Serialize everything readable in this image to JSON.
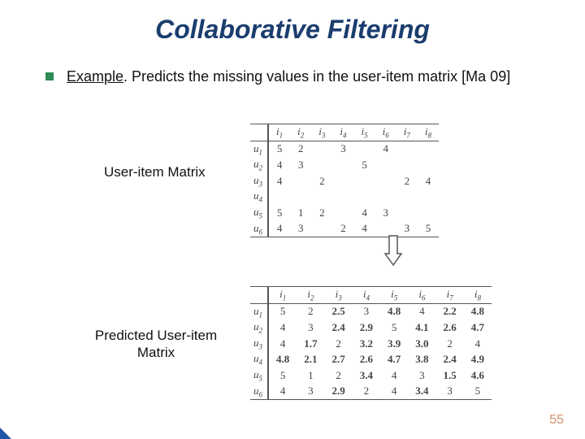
{
  "title": "Collaborative Filtering",
  "bullet": {
    "example_word": "Example",
    "rest": ". Predicts the missing values in the user-item matrix [Ma 09]"
  },
  "label_user_item": "User-item Matrix",
  "label_predicted": "Predicted User-item Matrix",
  "page_number": "55",
  "matrix1": {
    "col_labels": [
      "i",
      "i",
      "i",
      "i",
      "i",
      "i",
      "i",
      "i"
    ],
    "col_subs": [
      "1",
      "2",
      "3",
      "4",
      "5",
      "6",
      "7",
      "8"
    ],
    "row_labels": [
      "u",
      "u",
      "u",
      "u",
      "u",
      "u"
    ],
    "row_subs": [
      "1",
      "2",
      "3",
      "4",
      "5",
      "6"
    ],
    "cells": [
      [
        "5",
        "2",
        "",
        "3",
        "",
        "4",
        "",
        ""
      ],
      [
        "4",
        "3",
        "",
        "",
        "5",
        "",
        "",
        ""
      ],
      [
        "4",
        "",
        "2",
        "",
        "",
        "",
        "2",
        "4"
      ],
      [
        "",
        "",
        "",
        "",
        "",
        "",
        "",
        ""
      ],
      [
        "5",
        "1",
        "2",
        "",
        "4",
        "3",
        "",
        ""
      ],
      [
        "4",
        "3",
        "",
        "2",
        "4",
        "",
        "3",
        "5"
      ]
    ],
    "bold": [
      [
        false,
        false,
        false,
        false,
        false,
        false,
        false,
        false
      ],
      [
        false,
        false,
        false,
        false,
        false,
        false,
        false,
        false
      ],
      [
        false,
        false,
        false,
        false,
        false,
        false,
        false,
        false
      ],
      [
        false,
        false,
        false,
        false,
        false,
        false,
        false,
        false
      ],
      [
        false,
        false,
        false,
        false,
        false,
        false,
        false,
        false
      ],
      [
        false,
        false,
        false,
        false,
        false,
        false,
        false,
        false
      ]
    ]
  },
  "matrix2": {
    "col_labels": [
      "i",
      "i",
      "i",
      "i",
      "i",
      "i",
      "i",
      "i"
    ],
    "col_subs": [
      "1",
      "2",
      "3",
      "4",
      "5",
      "6",
      "7",
      "8"
    ],
    "row_labels": [
      "u",
      "u",
      "u",
      "u",
      "u",
      "u"
    ],
    "row_subs": [
      "1",
      "2",
      "3",
      "4",
      "5",
      "6"
    ],
    "cells": [
      [
        "5",
        "2",
        "2.5",
        "3",
        "4.8",
        "4",
        "2.2",
        "4.8"
      ],
      [
        "4",
        "3",
        "2.4",
        "2.9",
        "5",
        "4.1",
        "2.6",
        "4.7"
      ],
      [
        "4",
        "1.7",
        "2",
        "3.2",
        "3.9",
        "3.0",
        "2",
        "4"
      ],
      [
        "4.8",
        "2.1",
        "2.7",
        "2.6",
        "4.7",
        "3.8",
        "2.4",
        "4.9"
      ],
      [
        "5",
        "1",
        "2",
        "3.4",
        "4",
        "3",
        "1.5",
        "4.6"
      ],
      [
        "4",
        "3",
        "2.9",
        "2",
        "4",
        "3.4",
        "3",
        "5"
      ]
    ],
    "bold": [
      [
        false,
        false,
        true,
        false,
        true,
        false,
        true,
        true
      ],
      [
        false,
        false,
        true,
        true,
        false,
        true,
        true,
        true
      ],
      [
        false,
        true,
        false,
        true,
        true,
        true,
        false,
        false
      ],
      [
        true,
        true,
        true,
        true,
        true,
        true,
        true,
        true
      ],
      [
        false,
        false,
        false,
        true,
        false,
        false,
        true,
        true
      ],
      [
        false,
        false,
        true,
        false,
        false,
        true,
        false,
        false
      ]
    ]
  },
  "colors": {
    "title": "#1a3d6e",
    "bullet_square": "#2e8b57",
    "page_num": "#d4926b",
    "corner": "#2156a6",
    "table_border": "#555555",
    "text": "#111111"
  }
}
